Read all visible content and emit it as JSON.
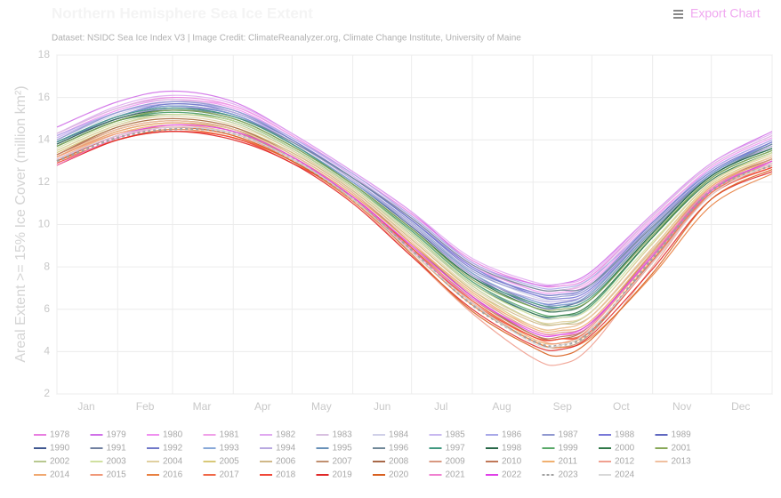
{
  "chart_data": {
    "type": "line",
    "title": "Northern Hemisphere Sea Ice Extent",
    "subtitle": "Dataset: NSIDC Sea Ice Index V3 | Image Credit: ClimateReanalyzer.org, Climate Change Institute, University of Maine",
    "export_label": "Export Chart",
    "y_label": "Areal Extent >= 15% Ice Cover (million km²)",
    "x": [
      1,
      32,
      60,
      91,
      121,
      152,
      182,
      213,
      244,
      258,
      274,
      305,
      335,
      366
    ],
    "xlim": [
      1,
      366
    ],
    "xticks": [
      1,
      32,
      60,
      91,
      121,
      152,
      182,
      213,
      244,
      274,
      305,
      335,
      366
    ],
    "month_labels": [
      {
        "value": 16,
        "label": "Jan"
      },
      {
        "value": 46,
        "label": "Feb"
      },
      {
        "value": 75,
        "label": "Mar"
      },
      {
        "value": 106,
        "label": "Apr"
      },
      {
        "value": 136,
        "label": "May"
      },
      {
        "value": 167,
        "label": "Jun"
      },
      {
        "value": 197,
        "label": "Jul"
      },
      {
        "value": 228,
        "label": "Aug"
      },
      {
        "value": 259,
        "label": "Sep"
      },
      {
        "value": 289,
        "label": "Oct"
      },
      {
        "value": 320,
        "label": "Nov"
      },
      {
        "value": 350,
        "label": "Dec"
      }
    ],
    "ylim": [
      2,
      18
    ],
    "yticks": [
      2,
      4,
      6,
      8,
      10,
      12,
      14,
      16,
      18
    ],
    "grid": true,
    "series": [
      {
        "name": "1978",
        "color": "#e87ee0",
        "values": [
          14.3,
          15.5,
          16.0,
          15.6,
          14.2,
          12.4,
          10.5,
          8.3,
          7.2,
          7.1,
          7.6,
          10.4,
          12.8,
          14.2
        ]
      },
      {
        "name": "1979",
        "color": "#d070e8",
        "values": [
          14.6,
          15.8,
          16.3,
          15.8,
          14.3,
          12.5,
          10.6,
          8.2,
          7.2,
          7.2,
          7.8,
          10.5,
          12.9,
          14.4
        ]
      },
      {
        "name": "1980",
        "color": "#f090f0",
        "values": [
          14.2,
          15.4,
          15.9,
          15.5,
          14.1,
          12.3,
          10.3,
          8.1,
          6.9,
          6.8,
          7.3,
          10.2,
          12.7,
          14.1
        ]
      },
      {
        "name": "1981",
        "color": "#f0a0e8",
        "values": [
          14.1,
          15.3,
          15.8,
          15.6,
          14.2,
          12.3,
          10.2,
          8.0,
          7.0,
          6.9,
          7.4,
          10.3,
          12.6,
          14.0
        ]
      },
      {
        "name": "1982",
        "color": "#e0a8f0",
        "values": [
          14.3,
          15.6,
          16.1,
          15.7,
          14.3,
          12.5,
          10.6,
          8.4,
          7.3,
          7.2,
          7.7,
          10.5,
          12.9,
          14.3
        ]
      },
      {
        "name": "1983",
        "color": "#d8c0e0",
        "values": [
          14.3,
          15.5,
          15.9,
          15.4,
          14.0,
          12.2,
          10.4,
          8.2,
          7.0,
          6.9,
          7.5,
          10.4,
          12.8,
          14.2
        ]
      },
      {
        "name": "1984",
        "color": "#d0d0e8",
        "values": [
          14.0,
          15.2,
          15.7,
          15.3,
          14.0,
          12.2,
          10.2,
          7.9,
          6.6,
          6.5,
          7.0,
          10.0,
          12.5,
          13.9
        ]
      },
      {
        "name": "1985",
        "color": "#c8b8f0",
        "values": [
          14.1,
          15.3,
          15.8,
          15.4,
          14.1,
          12.3,
          10.3,
          8.0,
          6.8,
          6.7,
          7.1,
          10.1,
          12.6,
          14.0
        ]
      },
      {
        "name": "1986",
        "color": "#a8a8e8",
        "values": [
          14.2,
          15.3,
          15.7,
          15.4,
          14.1,
          12.4,
          10.4,
          8.2,
          7.1,
          7.0,
          7.5,
          10.1,
          12.6,
          14.0
        ]
      },
      {
        "name": "1987",
        "color": "#9098d0",
        "values": [
          14.0,
          15.3,
          15.8,
          15.4,
          14.0,
          12.1,
          10.1,
          7.8,
          6.7,
          6.6,
          7.1,
          10.0,
          12.4,
          13.8
        ]
      },
      {
        "name": "1988",
        "color": "#7878d8",
        "values": [
          13.9,
          15.1,
          15.6,
          15.2,
          13.9,
          12.2,
          10.2,
          8.0,
          6.7,
          6.5,
          7.0,
          9.9,
          12.4,
          13.9
        ]
      },
      {
        "name": "1989",
        "color": "#6068c0",
        "values": [
          13.9,
          15.0,
          15.5,
          15.2,
          13.8,
          12.0,
          10.0,
          7.7,
          6.4,
          6.3,
          6.9,
          9.8,
          12.4,
          13.8
        ]
      },
      {
        "name": "1990",
        "color": "#405890",
        "values": [
          13.9,
          15.1,
          15.6,
          15.2,
          13.8,
          12.0,
          9.9,
          7.6,
          6.2,
          6.1,
          6.8,
          9.8,
          12.4,
          13.8
        ]
      },
      {
        "name": "1991",
        "color": "#7080a0",
        "values": [
          13.8,
          15.0,
          15.5,
          15.1,
          13.8,
          12.0,
          10.0,
          7.7,
          6.3,
          6.2,
          6.7,
          9.7,
          12.3,
          13.7
        ]
      },
      {
        "name": "1992",
        "color": "#7078c8",
        "values": [
          13.9,
          15.1,
          15.7,
          15.3,
          14.0,
          12.2,
          10.2,
          7.9,
          6.8,
          6.7,
          7.2,
          10.1,
          12.5,
          13.9
        ]
      },
      {
        "name": "1993",
        "color": "#88a8d8",
        "values": [
          13.9,
          15.1,
          15.6,
          15.2,
          13.8,
          12.0,
          10.0,
          7.7,
          6.4,
          6.2,
          6.8,
          9.8,
          12.4,
          13.8
        ]
      },
      {
        "name": "1994",
        "color": "#b8a8e0",
        "values": [
          13.8,
          15.0,
          15.5,
          15.3,
          13.9,
          12.1,
          10.0,
          7.6,
          6.5,
          6.4,
          6.9,
          9.9,
          12.3,
          13.7
        ]
      },
      {
        "name": "1995",
        "color": "#6890b8",
        "values": [
          13.7,
          14.9,
          15.3,
          14.9,
          13.6,
          11.8,
          9.7,
          7.3,
          5.8,
          5.6,
          6.2,
          9.4,
          12.2,
          13.5
        ]
      },
      {
        "name": "1996",
        "color": "#708898",
        "values": [
          13.7,
          14.9,
          15.4,
          15.1,
          13.9,
          12.2,
          10.3,
          8.1,
          7.0,
          6.9,
          7.2,
          9.9,
          12.3,
          13.8
        ]
      },
      {
        "name": "1997",
        "color": "#409880",
        "values": [
          13.9,
          15.1,
          15.5,
          15.1,
          13.8,
          11.9,
          9.8,
          7.5,
          6.3,
          6.1,
          6.6,
          9.6,
          12.3,
          13.6
        ]
      },
      {
        "name": "1998",
        "color": "#286848",
        "values": [
          13.8,
          15.0,
          15.4,
          15.0,
          13.7,
          11.9,
          9.8,
          7.5,
          6.1,
          5.9,
          6.5,
          9.6,
          12.3,
          13.6
        ]
      },
      {
        "name": "1999",
        "color": "#58a868",
        "values": [
          13.7,
          14.9,
          15.3,
          14.9,
          13.6,
          11.8,
          9.7,
          7.3,
          5.9,
          5.7,
          6.2,
          9.4,
          12.2,
          13.5
        ]
      },
      {
        "name": "2000",
        "color": "#307848",
        "values": [
          13.7,
          14.9,
          15.2,
          14.9,
          13.6,
          11.8,
          9.6,
          7.2,
          5.8,
          5.7,
          6.3,
          9.4,
          12.1,
          13.4
        ]
      },
      {
        "name": "2001",
        "color": "#88a858",
        "values": [
          13.7,
          14.9,
          15.4,
          15.0,
          13.7,
          11.9,
          9.8,
          7.4,
          6.1,
          6.0,
          6.5,
          9.5,
          12.2,
          13.5
        ]
      },
      {
        "name": "2002",
        "color": "#b8c890",
        "values": [
          13.5,
          14.7,
          15.2,
          14.8,
          13.5,
          11.7,
          9.5,
          7.1,
          5.5,
          5.3,
          5.9,
          9.1,
          12.0,
          13.4
        ]
      },
      {
        "name": "2003",
        "color": "#d0e0a0",
        "values": [
          13.6,
          14.8,
          15.2,
          14.9,
          13.6,
          11.8,
          9.6,
          7.2,
          5.7,
          5.6,
          6.1,
          9.2,
          12.0,
          13.4
        ]
      },
      {
        "name": "2004",
        "color": "#e0d0a0",
        "values": [
          13.5,
          14.7,
          15.1,
          14.7,
          13.5,
          11.7,
          9.4,
          7.0,
          5.5,
          5.4,
          5.9,
          9.1,
          12.0,
          13.3
        ]
      },
      {
        "name": "2005",
        "color": "#d8c878",
        "values": [
          13.4,
          14.6,
          15.0,
          14.6,
          13.4,
          11.6,
          9.3,
          6.9,
          5.2,
          5.1,
          5.7,
          8.9,
          11.9,
          13.2
        ]
      },
      {
        "name": "2006",
        "color": "#d0b888",
        "values": [
          13.2,
          14.4,
          14.8,
          14.5,
          13.4,
          11.6,
          9.3,
          6.9,
          5.4,
          5.3,
          5.7,
          8.8,
          11.7,
          13.1
        ]
      },
      {
        "name": "2007",
        "color": "#c09070",
        "values": [
          13.2,
          14.4,
          14.8,
          14.4,
          13.1,
          11.3,
          8.9,
          6.3,
          4.5,
          4.2,
          4.9,
          8.3,
          11.6,
          13.0
        ]
      },
      {
        "name": "2008",
        "color": "#a86848",
        "values": [
          13.3,
          14.6,
          15.0,
          14.6,
          13.3,
          11.5,
          9.1,
          6.6,
          4.8,
          4.6,
          5.3,
          8.7,
          11.8,
          13.1
        ]
      },
      {
        "name": "2009",
        "color": "#d89880",
        "values": [
          13.3,
          14.5,
          14.9,
          14.5,
          13.2,
          11.4,
          9.1,
          6.7,
          5.0,
          4.9,
          5.4,
          8.6,
          11.7,
          13.1
        ]
      },
      {
        "name": "2010",
        "color": "#c07858",
        "values": [
          13.3,
          14.5,
          14.9,
          14.5,
          13.1,
          11.2,
          8.9,
          6.5,
          4.8,
          4.7,
          5.3,
          8.6,
          11.6,
          12.9
        ]
      },
      {
        "name": "2011",
        "color": "#f0b070",
        "values": [
          13.1,
          14.3,
          14.7,
          14.3,
          13.1,
          11.3,
          8.9,
          6.4,
          4.6,
          4.4,
          5.0,
          8.4,
          11.6,
          12.9
        ]
      },
      {
        "name": "2012",
        "color": "#f0a090",
        "values": [
          13.0,
          14.2,
          14.6,
          14.3,
          13.0,
          11.1,
          8.5,
          5.8,
          3.7,
          3.4,
          4.3,
          8.0,
          11.5,
          12.8
        ]
      },
      {
        "name": "2013",
        "color": "#f0c0a0",
        "values": [
          13.2,
          14.5,
          14.9,
          14.5,
          13.3,
          11.5,
          9.2,
          6.7,
          5.2,
          5.1,
          5.7,
          8.9,
          11.8,
          13.2
        ]
      },
      {
        "name": "2014",
        "color": "#f0a870",
        "values": [
          13.2,
          14.4,
          14.8,
          14.4,
          13.2,
          11.4,
          9.1,
          6.8,
          5.1,
          5.0,
          5.5,
          8.7,
          11.8,
          13.0
        ]
      },
      {
        "name": "2015",
        "color": "#f09878",
        "values": [
          13.2,
          14.3,
          14.6,
          14.2,
          13.0,
          11.2,
          9.0,
          6.4,
          4.7,
          4.4,
          5.2,
          8.5,
          11.7,
          12.9
        ]
      },
      {
        "name": "2016",
        "color": "#e88040",
        "values": [
          13.0,
          14.0,
          14.5,
          14.1,
          13.0,
          11.1,
          8.7,
          6.2,
          4.5,
          4.2,
          4.7,
          7.6,
          10.9,
          12.4
        ]
      },
      {
        "name": "2017",
        "color": "#f06848",
        "values": [
          12.8,
          14.0,
          14.4,
          14.1,
          13.0,
          11.2,
          8.8,
          6.4,
          4.7,
          4.6,
          5.1,
          8.3,
          11.5,
          12.7
        ]
      },
      {
        "name": "2018",
        "color": "#f04838",
        "values": [
          12.9,
          14.0,
          14.4,
          14.1,
          12.9,
          11.3,
          8.9,
          6.3,
          4.7,
          4.6,
          5.0,
          8.2,
          11.4,
          12.7
        ]
      },
      {
        "name": "2019",
        "color": "#e02828",
        "values": [
          12.8,
          14.0,
          14.4,
          14.0,
          12.9,
          11.0,
          8.5,
          6.0,
          4.3,
          4.1,
          4.8,
          7.9,
          11.2,
          12.5
        ]
      },
      {
        "name": "2020",
        "color": "#d86020",
        "values": [
          13.0,
          14.2,
          14.6,
          14.2,
          13.0,
          11.2,
          8.6,
          5.9,
          4.2,
          3.8,
          4.6,
          7.7,
          11.2,
          12.6
        ]
      },
      {
        "name": "2021",
        "color": "#f080d0",
        "values": [
          12.8,
          14.1,
          14.6,
          14.3,
          13.1,
          11.3,
          8.8,
          6.5,
          5.0,
          4.8,
          5.3,
          8.6,
          11.7,
          12.9
        ]
      },
      {
        "name": "2022",
        "color": "#e040e8",
        "values": [
          13.1,
          14.2,
          14.7,
          14.4,
          13.2,
          11.3,
          9.0,
          6.6,
          4.9,
          4.8,
          5.4,
          8.5,
          11.6,
          13.0
        ]
      },
      {
        "name": "2023",
        "color": "#a0a0a0",
        "dashed": true,
        "values": [
          13.0,
          14.1,
          14.5,
          14.3,
          13.1,
          11.2,
          8.8,
          6.2,
          4.5,
          4.3,
          5.0,
          8.4,
          11.6,
          12.8
        ]
      },
      {
        "name": "2024",
        "color": "#d8d8d8",
        "values": [
          13.1,
          14.2,
          14.6,
          14.3,
          13.1,
          11.2,
          8.7,
          6.3,
          4.4,
          4.3,
          5.1,
          8.2,
          11.4,
          12.9
        ]
      }
    ]
  }
}
